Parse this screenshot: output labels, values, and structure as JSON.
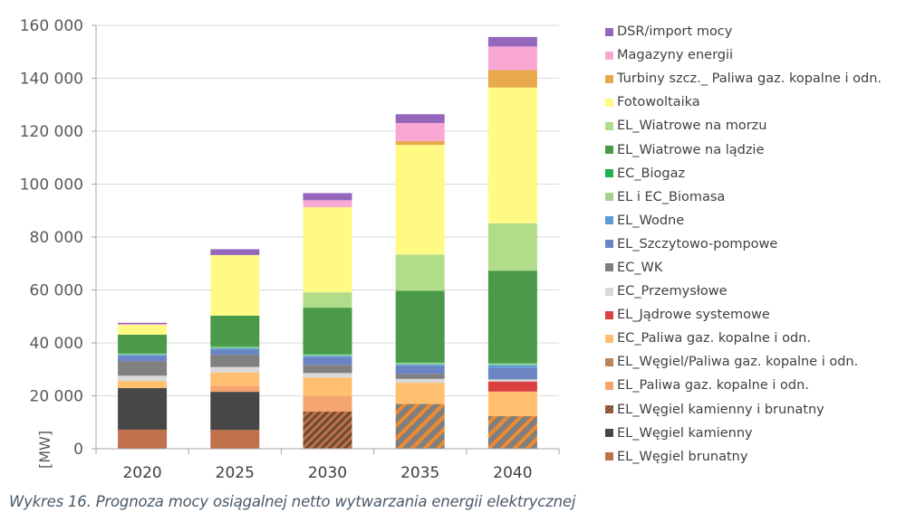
{
  "chart_data": {
    "type": "bar",
    "stacked": true,
    "title": "",
    "caption": "Wykres 16. Prognoza mocy osiągalnej netto wytwarzania energii elektrycznej",
    "xlabel": "",
    "ylabel": "[MW]",
    "ylim": [
      0,
      160000
    ],
    "yticks": [
      0,
      20000,
      40000,
      60000,
      80000,
      100000,
      120000,
      140000,
      160000
    ],
    "ytick_labels": [
      "0",
      "20 000",
      "40 000",
      "60 000",
      "80 000",
      "100 000",
      "120 000",
      "140 000",
      "160 000"
    ],
    "grid": true,
    "legend_position": "right",
    "categories": [
      "2020",
      "2025",
      "2030",
      "2035",
      "2040"
    ],
    "series": [
      {
        "name": "EL_Węgiel brunatny",
        "color": "#C0704A",
        "pattern": "none",
        "values": [
          7200,
          7100,
          0,
          0,
          0
        ]
      },
      {
        "name": "EL_Węgiel kamienny",
        "color": "#474747",
        "pattern": "none",
        "values": [
          15700,
          14400,
          0,
          0,
          0
        ]
      },
      {
        "name": "EL_Węgiel kamienny i brunatny",
        "color": "#C0704A",
        "pattern": "hatch-dark",
        "pattern_color": "#6B4A2E",
        "values": [
          0,
          0,
          14000,
          0,
          0
        ]
      },
      {
        "name": "EL_Paliwa gaz. kopalne i odn.",
        "color": "#F4A46E",
        "pattern": "none",
        "values": [
          0,
          2300,
          5900,
          0,
          0
        ]
      },
      {
        "name": "EL_Węgiel/Paliwa gaz. kopalne i odn.",
        "color": "#7F7F7F",
        "pattern": "hatch-orange",
        "pattern_color": "#F08A30",
        "values": [
          0,
          0,
          0,
          16900,
          12300
        ]
      },
      {
        "name": "EC_Paliwa gaz. kopalne i odn.",
        "color": "#FFBF6E",
        "pattern": "none",
        "values": [
          2700,
          5000,
          7000,
          8000,
          9300
        ]
      },
      {
        "name": "EL_Jądrowe systemowe",
        "color": "#D9403F",
        "pattern": "none",
        "values": [
          0,
          0,
          0,
          0,
          3800
        ]
      },
      {
        "name": "EC_Przemysłowe",
        "color": "#D9D9D9",
        "pattern": "none",
        "values": [
          2000,
          2100,
          1700,
          1500,
          800
        ]
      },
      {
        "name": "EC_WK",
        "color": "#808080",
        "pattern": "none",
        "values": [
          5500,
          4600,
          3100,
          1900,
          0
        ]
      },
      {
        "name": "EL_Szczytowo-pompowe",
        "color": "#6A84C4",
        "pattern": "none",
        "values": [
          1900,
          1900,
          2800,
          2900,
          4300
        ]
      },
      {
        "name": "EL_Wodne",
        "color": "#5B9BD5",
        "pattern": "none",
        "values": [
          600,
          600,
          600,
          700,
          1100
        ]
      },
      {
        "name": "EL i EC_Biomasa",
        "color": "#A9D18E",
        "pattern": "none",
        "values": [
          300,
          400,
          500,
          500,
          600
        ]
      },
      {
        "name": "EC_Biogaz",
        "color": "#22B04F",
        "pattern": "none",
        "values": [
          200,
          300,
          300,
          300,
          300
        ]
      },
      {
        "name": "EL_Wiatrowe na lądzie",
        "color": "#4A9A4A",
        "pattern": "none",
        "values": [
          7000,
          11600,
          17400,
          27000,
          34800
        ]
      },
      {
        "name": "EL_Wiatrowe na morzu",
        "color": "#B1DC8A",
        "pattern": "none",
        "values": [
          0,
          0,
          5800,
          13700,
          17900
        ]
      },
      {
        "name": "Fotowoltaika",
        "color": "#FFFA84",
        "pattern": "none",
        "values": [
          3700,
          22900,
          32200,
          41400,
          51300
        ]
      },
      {
        "name": "Turbiny szcz._ Paliwa gaz. kopalne i odn.",
        "color": "#E8A94B",
        "pattern": "none",
        "values": [
          0,
          0,
          0,
          1500,
          6600
        ]
      },
      {
        "name": "Magazyny energii",
        "color": "#F9A8D4",
        "pattern": "none",
        "values": [
          300,
          0,
          2600,
          6800,
          8900
        ]
      },
      {
        "name": "DSR/import mocy",
        "color": "#9467BD",
        "pattern": "none",
        "values": [
          500,
          2200,
          2700,
          3300,
          3600
        ]
      }
    ],
    "legend_order": [
      "DSR/import mocy",
      "Magazyny energii",
      "Turbiny szcz._ Paliwa gaz. kopalne i odn.",
      "Fotowoltaika",
      "EL_Wiatrowe na morzu",
      "EL_Wiatrowe na lądzie",
      "EC_Biogaz",
      "EL i EC_Biomasa",
      "EL_Wodne",
      "EL_Szczytowo-pompowe",
      "EC_WK",
      "EC_Przemysłowe",
      "EL_Jądrowe systemowe",
      "EC_Paliwa gaz. kopalne i odn.",
      "EL_Węgiel/Paliwa gaz. kopalne i odn.",
      "EL_Paliwa gaz. kopalne i odn.",
      "EL_Węgiel kamienny i brunatny",
      "EL_Węgiel kamienny",
      "EL_Węgiel brunatny"
    ]
  },
  "caption": "Wykres 16. Prognoza mocy osiągalnej netto wytwarzania energii elektrycznej",
  "ylabel": "[MW]"
}
